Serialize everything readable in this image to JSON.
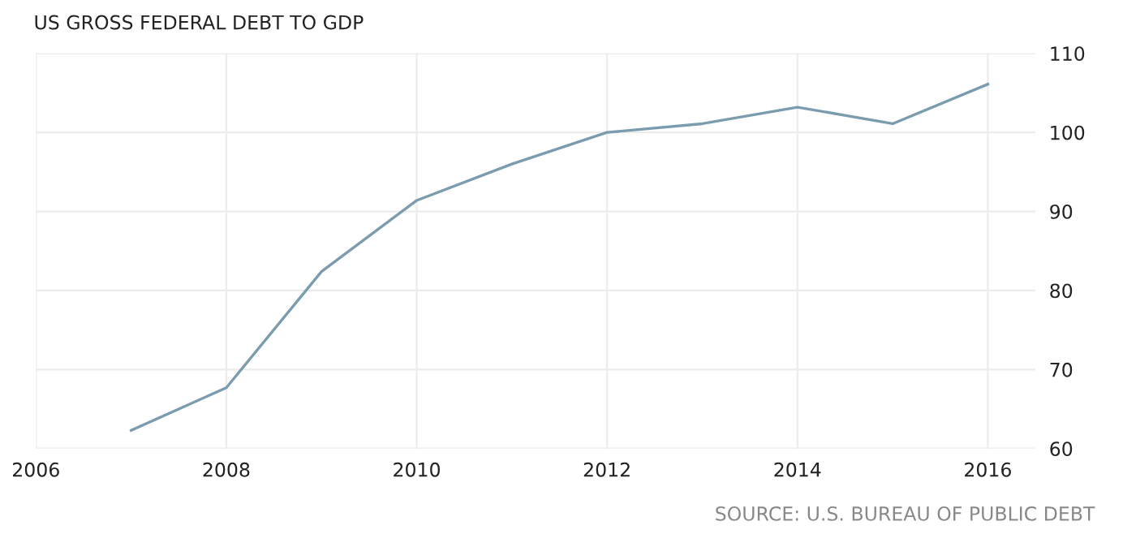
{
  "chart_data": {
    "type": "line",
    "title": "US GROSS FEDERAL DEBT TO GDP",
    "x": [
      2007,
      2008,
      2009,
      2010,
      2011,
      2012,
      2013,
      2014,
      2015,
      2016
    ],
    "series": [
      {
        "color": "#7a9cae",
        "values": [
          62.3,
          67.7,
          82.4,
          91.4,
          96.0,
          100.0,
          101.1,
          103.2,
          101.1,
          106.1
        ]
      }
    ],
    "xlim": [
      2006,
      2016.5
    ],
    "xticks": [
      2006,
      2008,
      2010,
      2012,
      2014,
      2016
    ],
    "ylim": [
      60,
      110
    ],
    "yticks": [
      60,
      70,
      80,
      90,
      100,
      110
    ],
    "grid": true,
    "legend": false,
    "marker": "none",
    "line_style": "solid",
    "annotations": [
      "SOURCE: U.S. BUREAU OF PUBLIC DEBT"
    ]
  }
}
